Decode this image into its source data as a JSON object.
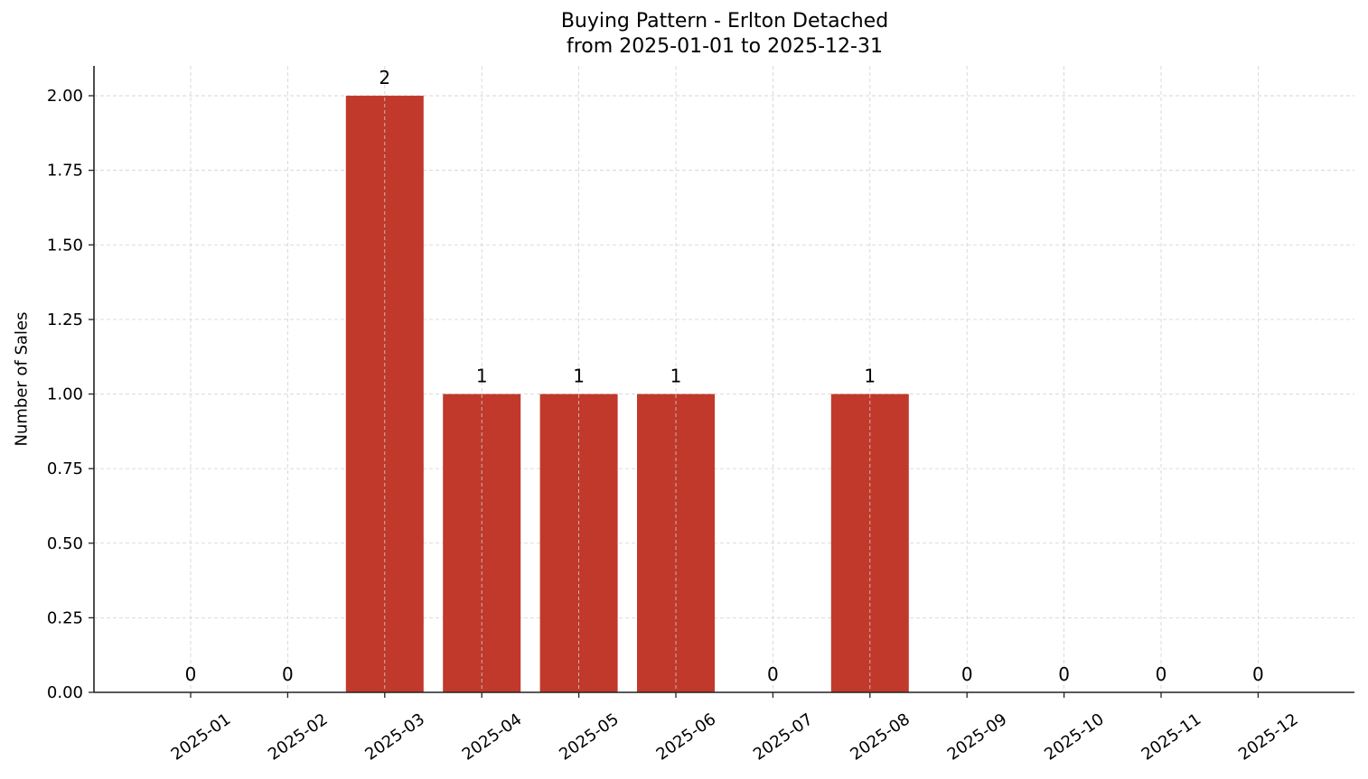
{
  "chart_data": {
    "type": "bar",
    "title": "Buying Pattern - Erlton Detached",
    "subtitle": "from 2025-01-01 to 2025-12-31",
    "xlabel": "",
    "ylabel": "Number of Sales",
    "categories": [
      "2025-01",
      "2025-02",
      "2025-03",
      "2025-04",
      "2025-05",
      "2025-06",
      "2025-07",
      "2025-08",
      "2025-09",
      "2025-10",
      "2025-11",
      "2025-12"
    ],
    "values": [
      0,
      0,
      2,
      1,
      1,
      1,
      0,
      1,
      0,
      0,
      0,
      0
    ],
    "data_labels": [
      "0",
      "0",
      "2",
      "1",
      "1",
      "1",
      "0",
      "1",
      "0",
      "0",
      "0",
      "0"
    ],
    "ylim": [
      0,
      2.1
    ],
    "yticks": [
      "0.00",
      "0.25",
      "0.50",
      "0.75",
      "1.00",
      "1.25",
      "1.50",
      "1.75",
      "2.00"
    ],
    "grid": true,
    "legend": null,
    "bar_color": "#c0392b"
  }
}
